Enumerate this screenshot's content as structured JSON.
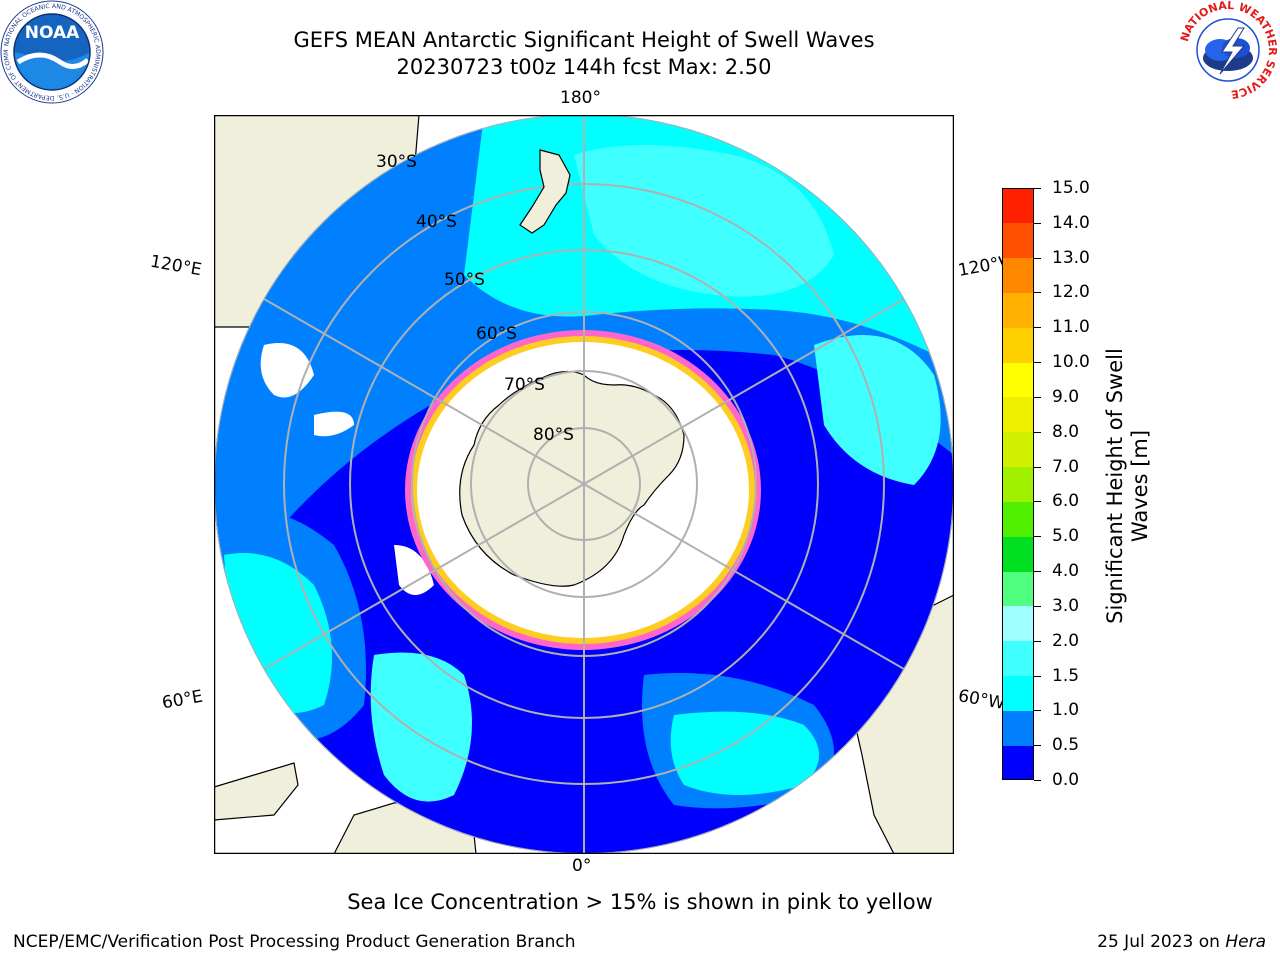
{
  "header": {
    "title_line1": "GEFS MEAN Antarctic Significant Height of Swell Waves",
    "title_line2": "20230723 t00z 144h fcst   Max: 2.50"
  },
  "map": {
    "projection": "south polar stereographic",
    "longitude_labels": {
      "top": "180°",
      "bottom": "0°",
      "upper_left": "120°E",
      "lower_left": "60°E",
      "upper_right": "120°W",
      "lower_right": "60°W"
    },
    "latitude_labels": [
      "30°S",
      "40°S",
      "50°S",
      "60°S",
      "70°S",
      "80°S"
    ],
    "colors": {
      "land": "#efefdb",
      "ocean_open": "#ffffff",
      "graticule": "#b0b0b0",
      "ice_edge_pink": "#ff66cc",
      "ice_edge_yellow": "#ffcc22",
      "sea_ice": "#ffffff"
    }
  },
  "colorbar": {
    "label": "Significant Height of Swell Waves [m]",
    "ticks": [
      "15.0",
      "14.0",
      "13.0",
      "12.0",
      "11.0",
      "10.0",
      "9.0",
      "8.0",
      "7.0",
      "6.0",
      "5.0",
      "4.0",
      "3.0",
      "2.0",
      "1.5",
      "1.0",
      "0.5",
      "0.0"
    ],
    "colors_bottom_to_top": [
      "#0000ff",
      "#0080ff",
      "#00ffff",
      "#40ffff",
      "#a0ffff",
      "#50ff80",
      "#00e020",
      "#50f000",
      "#a0f000",
      "#d0f000",
      "#eef000",
      "#ffff00",
      "#ffd000",
      "#ffb000",
      "#ff8800",
      "#ff5000",
      "#ff2000"
    ]
  },
  "caption": "Sea Ice Concentration > 15% is shown in pink to yellow",
  "footer": {
    "left": "NCEP/EMC/Verification Post Processing Product Generation Branch",
    "right_prefix": "25 Jul 2023 on ",
    "right_host": "Hera"
  },
  "logos": {
    "noaa_text": "NOAA",
    "noaa_ring": "NATIONAL OCEANIC AND ATMOSPHERIC ADMINISTRATION · U.S. DEPARTMENT OF COMMERCE",
    "nws_ring": "NATIONAL WEATHER SERVICE"
  }
}
